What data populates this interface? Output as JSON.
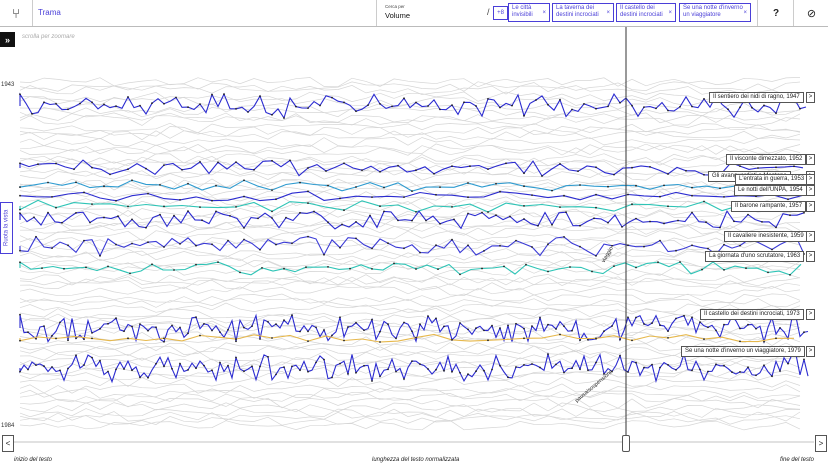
{
  "header": {
    "logo_icon": "branch-icon",
    "section": "Trama",
    "search_label": "Cerca per",
    "search_value": "Volume",
    "slash": "/",
    "more_count": "+8",
    "chips": [
      {
        "label": "Le città invisibili"
      },
      {
        "label": "La taverna dei destini incrociati"
      },
      {
        "label": "Il castello dei destini incrociati"
      },
      {
        "label": "Se una notte d'inverno un viaggiatore"
      }
    ],
    "chip_close": "×",
    "help": "?",
    "compass_icon": "compass-icon"
  },
  "side": {
    "expand": "»",
    "hint": "scrolla per zoomare",
    "year_start": "1943",
    "year_end": "1984",
    "rotate": "Ruota la vista"
  },
  "titles": [
    {
      "label": "Il sentiero dei nidi di ragno, 1947"
    },
    {
      "label": "Il visconte dimezzato, 1952"
    },
    {
      "label": "Gli avanguardisti a Mentone"
    },
    {
      "label": "L'entrata in guerra, 1953"
    },
    {
      "label": "Le notti dell'UNPA, 1954"
    },
    {
      "label": "Il barone rampante, 1957"
    },
    {
      "label": "Il cavaliere inesistente, 1959"
    },
    {
      "label": "La giornata d'uno scrutatore, 1963"
    },
    {
      "label": "Il castello dei destini incrociati, 1973"
    },
    {
      "label": "Se una notte d'inverno un viaggiatore, 1979"
    }
  ],
  "title_arrow": ">",
  "annotations": {
    "a1": "viaggio",
    "a2": "pausa/sospensione"
  },
  "footer": {
    "start": "inizio del testo",
    "middle": "lunghezza del testo normalizzata",
    "end": "fine del testo",
    "prev": "<",
    "next": ">"
  },
  "colors": {
    "accent": "#4a3fd8",
    "line_blue": "#2b2bd0",
    "line_teal": "#2ec4b6",
    "line_orange": "#e08a3c",
    "background_lines": "#d9d9d9"
  }
}
